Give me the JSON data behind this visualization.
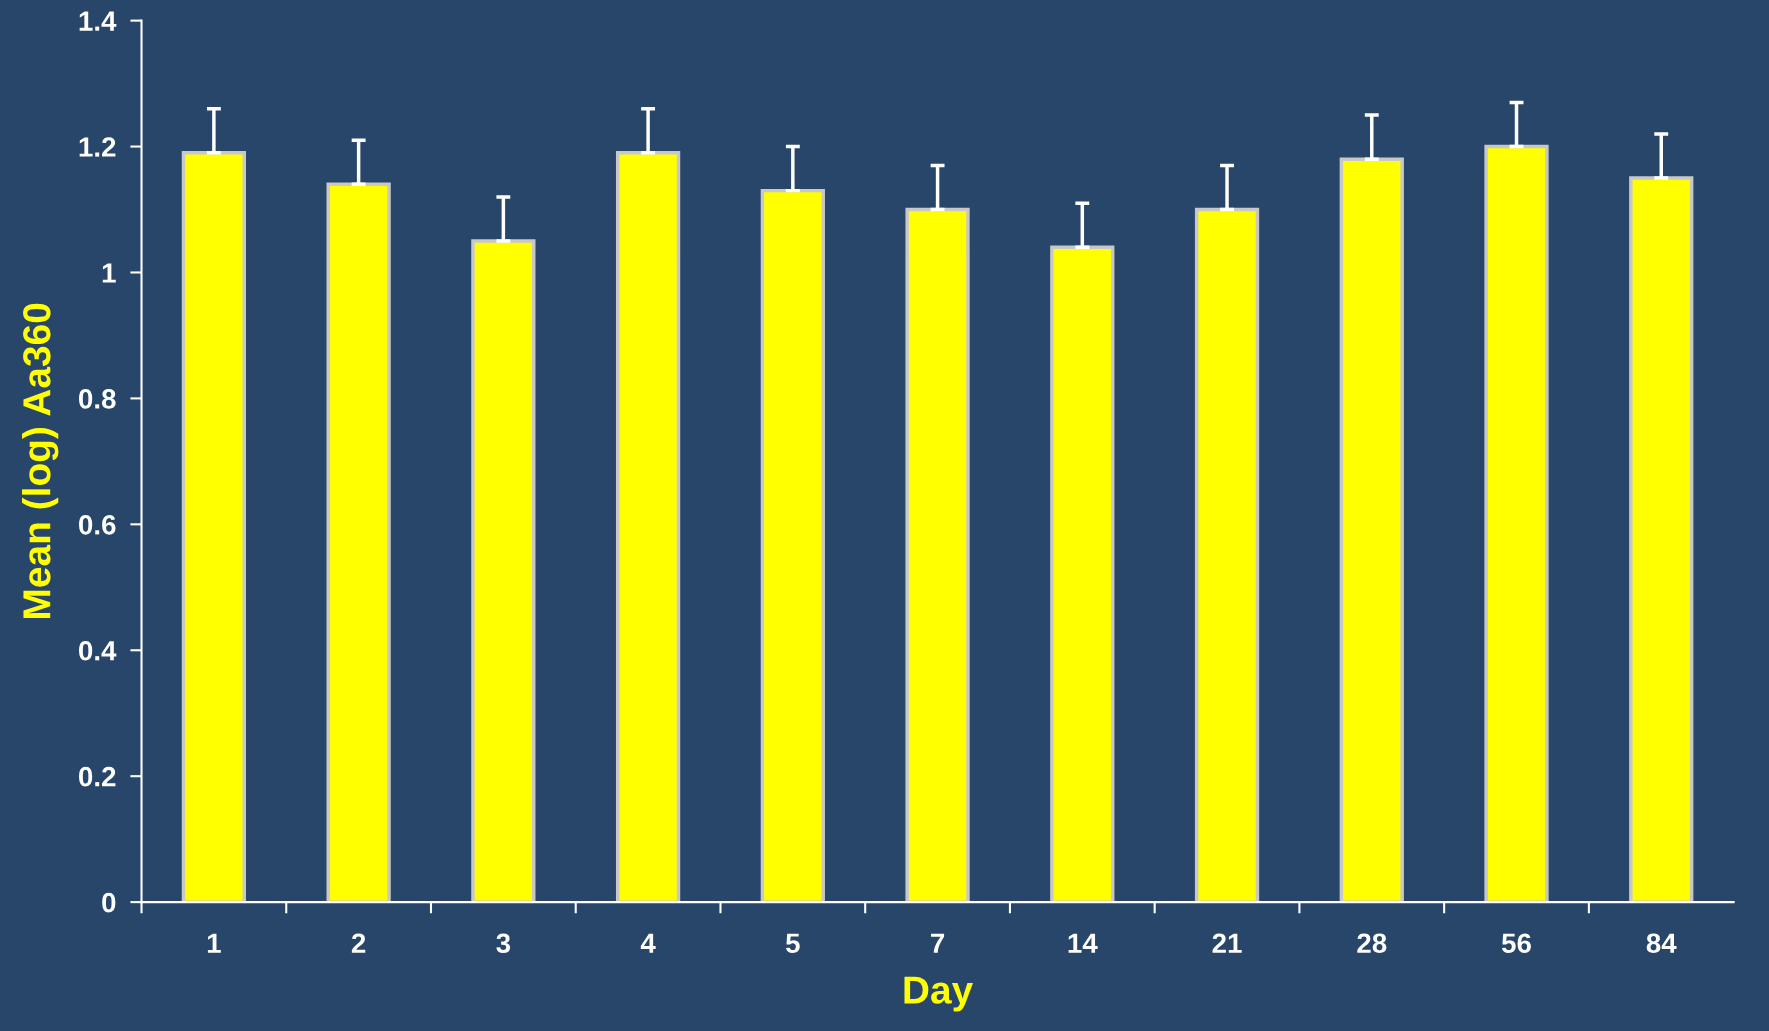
{
  "chart_data": {
    "type": "bar",
    "xlabel": "Day",
    "ylabel": "Mean (log) Aa360",
    "categories": [
      "1",
      "2",
      "3",
      "4",
      "5",
      "7",
      "14",
      "21",
      "28",
      "56",
      "84"
    ],
    "values": [
      1.19,
      1.14,
      1.05,
      1.19,
      1.13,
      1.1,
      1.04,
      1.1,
      1.18,
      1.2,
      1.15
    ],
    "errors": [
      [
        1.19,
        1.26
      ],
      [
        1.14,
        1.21
      ],
      [
        1.05,
        1.12
      ],
      [
        1.19,
        1.26
      ],
      [
        1.13,
        1.2
      ],
      [
        1.1,
        1.17
      ],
      [
        1.04,
        1.11
      ],
      [
        1.1,
        1.17
      ],
      [
        1.18,
        1.25
      ],
      [
        1.2,
        1.27
      ],
      [
        1.15,
        1.22
      ]
    ],
    "color": "#ffff00",
    "ylim": [
      0,
      1.4
    ],
    "yticks": [
      0,
      0.2,
      0.4,
      0.6,
      0.8,
      1,
      1.2,
      1.4
    ],
    "grid": false,
    "legend": false
  }
}
